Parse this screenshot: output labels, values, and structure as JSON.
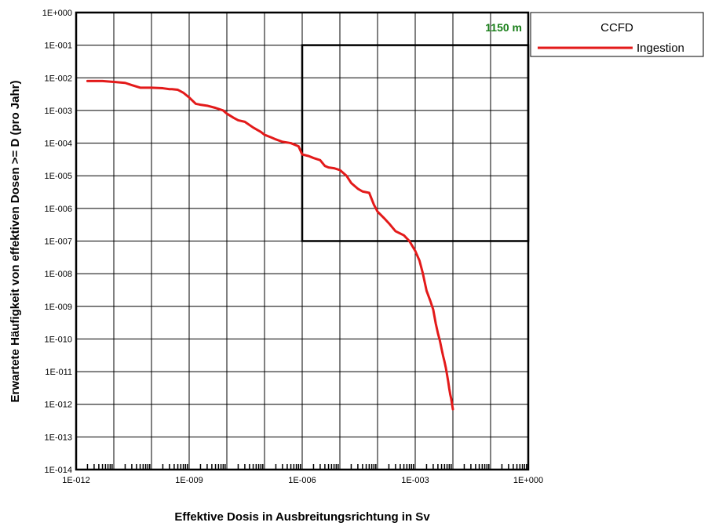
{
  "chart_data": {
    "type": "line",
    "title": "",
    "xlabel": "Effektive Dosis in Ausbreitungsrichtung in Sv",
    "ylabel": "Erwartete Häufigkeit von effektiven Dosen >= D (pro Jahr)",
    "x_scale": "log",
    "y_scale": "log",
    "xlim": [
      1e-12,
      1
    ],
    "ylim": [
      1e-14,
      1
    ],
    "grid": true,
    "x_tick_labels": [
      "1E-012",
      "1E-009",
      "1E-006",
      "1E-003",
      "1E+000"
    ],
    "x_tick_values": [
      1e-12,
      1e-09,
      1e-06,
      0.001,
      1
    ],
    "y_tick_labels": [
      "1E+000",
      "1E-001",
      "1E-002",
      "1E-003",
      "1E-004",
      "1E-005",
      "1E-006",
      "1E-007",
      "1E-008",
      "1E-009",
      "1E-010",
      "1E-011",
      "1E-012",
      "1E-013",
      "1E-014"
    ],
    "y_tick_values": [
      1,
      0.1,
      0.01,
      0.001,
      0.0001,
      1e-05,
      1e-06,
      1e-07,
      1e-08,
      1e-09,
      1e-10,
      1e-11,
      1e-12,
      1e-13,
      1e-14
    ],
    "annotation": {
      "text": "1150 m",
      "color": "#1a7f1a"
    },
    "limit_box": {
      "x": [
        1e-06,
        1
      ],
      "y": [
        1e-07,
        0.1
      ]
    },
    "legend": {
      "title": "CCFD",
      "placement": "top-right-outside"
    },
    "series": [
      {
        "name": "Ingestion",
        "color": "#e31a1a",
        "x": [
          2e-12,
          5e-12,
          1e-11,
          2e-11,
          3e-11,
          5e-11,
          1e-10,
          2e-10,
          3e-10,
          3.5e-10,
          5e-10,
          7e-10,
          1e-09,
          1.5e-09,
          2e-09,
          3e-09,
          5e-09,
          8e-09,
          1e-08,
          1.5e-08,
          2e-08,
          3e-08,
          5e-08,
          8e-08,
          1e-07,
          1.5e-07,
          2e-07,
          3e-07,
          5e-07,
          8e-07,
          1e-06,
          1.5e-06,
          2e-06,
          3e-06,
          4e-06,
          5e-06,
          7e-06,
          1e-05,
          1.5e-05,
          2e-05,
          3e-05,
          4e-05,
          6e-05,
          8e-05,
          0.0001,
          0.00015,
          0.0002,
          0.0003,
          0.0005,
          0.0007,
          0.001,
          0.0013,
          0.0016,
          0.002,
          0.0025,
          0.003,
          0.0035,
          0.004,
          0.0045,
          0.005,
          0.0055,
          0.006,
          0.0065,
          0.007,
          0.0075,
          0.008,
          0.0085,
          0.009,
          0.0095,
          0.01
        ],
        "y": [
          0.008,
          0.008,
          0.0075,
          0.007,
          0.006,
          0.005,
          0.005,
          0.0048,
          0.0045,
          0.0045,
          0.0043,
          0.0035,
          0.0025,
          0.0016,
          0.0015,
          0.0014,
          0.0012,
          0.001,
          0.0008,
          0.0006,
          0.0005,
          0.00045,
          0.0003,
          0.00022,
          0.00018,
          0.00015,
          0.00013,
          0.00011,
          0.0001,
          8e-05,
          4.5e-05,
          4e-05,
          3.5e-05,
          3e-05,
          2e-05,
          1.8e-05,
          1.7e-05,
          1.5e-05,
          1e-05,
          6e-06,
          4e-06,
          3.3e-06,
          3e-06,
          1.3e-06,
          8e-07,
          5e-07,
          3.5e-07,
          2e-07,
          1.5e-07,
          1e-07,
          5e-08,
          2.5e-08,
          1e-08,
          3e-09,
          1.5e-09,
          8e-10,
          3e-10,
          1.5e-10,
          9e-11,
          5e-11,
          3e-11,
          2e-11,
          1.3e-11,
          8e-12,
          5e-12,
          3e-12,
          2e-12,
          1.5e-12,
          1e-12,
          7e-13
        ]
      }
    ]
  }
}
